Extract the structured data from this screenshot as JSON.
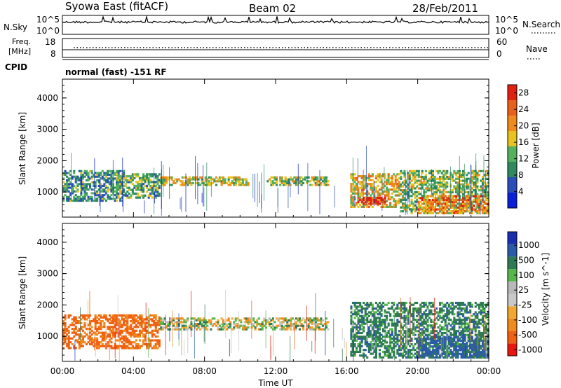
{
  "header": {
    "station": "Syowa East (fitACF)",
    "beam": "Beam 02",
    "date": "28/Feb/2011"
  },
  "strips": {
    "nsky": {
      "label": "N.Sky",
      "tick_top": "10^5",
      "tick_bottom": "10^0",
      "right_label": "N.Search",
      "right_tick_top": "10^5",
      "right_tick_bottom": "10^0"
    },
    "freq": {
      "label_line1": "Freq.",
      "label_line2": "[MHz]",
      "tick_top": "18",
      "tick_bottom": "8",
      "right_label": "Nave",
      "right_tick_top": "60",
      "right_tick_bottom": "0"
    },
    "cpid": {
      "label": "CPID",
      "text": "normal (fast) -151 RF"
    }
  },
  "colors": {
    "power": [
      "#0a1fd8",
      "#2b4fb8",
      "#2e8a5e",
      "#55b060",
      "#e8c31e",
      "#f08a1c",
      "#e8601a",
      "#e02010"
    ],
    "velocity": [
      "#e8170f",
      "#f06010",
      "#f08a1c",
      "#f0a830",
      "#c8c8c8",
      "#b8b8b8",
      "#55b84a",
      "#2e7a54",
      "#2b5ba8",
      "#1a2fb0"
    ]
  },
  "chart_data": [
    {
      "type": "heatmap",
      "title": "",
      "xlabel": "",
      "ylabel": "Slant Range [km]",
      "xlim": [
        0,
        24
      ],
      "ylim": [
        200,
        4600
      ],
      "x_ticks": [
        "00:00",
        "04:00",
        "08:00",
        "12:00",
        "16:00",
        "20:00",
        "00:00"
      ],
      "y_ticks": [
        "1000",
        "2000",
        "3000",
        "4000"
      ],
      "colorbar": {
        "label": "Power [dB]",
        "ticks": [
          "4",
          "8",
          "12",
          "16",
          "20",
          "24",
          "28"
        ],
        "range": [
          0,
          30
        ]
      },
      "regions": [
        {
          "t0": 0.0,
          "t1": 3.5,
          "r0": 700,
          "r1": 1700,
          "level": 10
        },
        {
          "t0": 3.0,
          "t1": 5.5,
          "r0": 800,
          "r1": 1600,
          "level": 12
        },
        {
          "t0": 5.5,
          "t1": 10.5,
          "r0": 1200,
          "r1": 1500,
          "level": 16
        },
        {
          "t0": 11.5,
          "t1": 15.0,
          "r0": 1200,
          "r1": 1500,
          "level": 14
        },
        {
          "t0": 16.2,
          "t1": 19.0,
          "r0": 500,
          "r1": 1600,
          "level": 18
        },
        {
          "t0": 16.6,
          "t1": 18.2,
          "r0": 600,
          "r1": 850,
          "level": 28
        },
        {
          "t0": 19.0,
          "t1": 24.0,
          "r0": 300,
          "r1": 1700,
          "level": 14
        },
        {
          "t0": 20.0,
          "t1": 24.0,
          "r0": 300,
          "r1": 900,
          "level": 22
        }
      ]
    },
    {
      "type": "heatmap",
      "title": "",
      "xlabel": "Time UT",
      "ylabel": "Slant Range [km]",
      "xlim": [
        0,
        24
      ],
      "ylim": [
        200,
        4600
      ],
      "x_ticks": [
        "00:00",
        "04:00",
        "08:00",
        "12:00",
        "16:00",
        "20:00",
        "00:00"
      ],
      "y_ticks": [
        "1000",
        "2000",
        "3000",
        "4000"
      ],
      "colorbar": {
        "label": "Velocity [m s^-1]",
        "ticks": [
          "1000",
          "500",
          "100",
          "25",
          "-25",
          "-100",
          "-500",
          "-1000"
        ]
      },
      "regions": [
        {
          "t0": 0.0,
          "t1": 5.5,
          "r0": 600,
          "r1": 1700,
          "level": -300
        },
        {
          "t0": 5.5,
          "t1": 15.0,
          "r0": 1200,
          "r1": 1600,
          "level": 0
        },
        {
          "t0": 16.2,
          "t1": 24.0,
          "r0": 300,
          "r1": 2100,
          "level": 200
        },
        {
          "t0": 20.0,
          "t1": 24.0,
          "r0": 300,
          "r1": 1000,
          "level": 400
        }
      ]
    }
  ]
}
